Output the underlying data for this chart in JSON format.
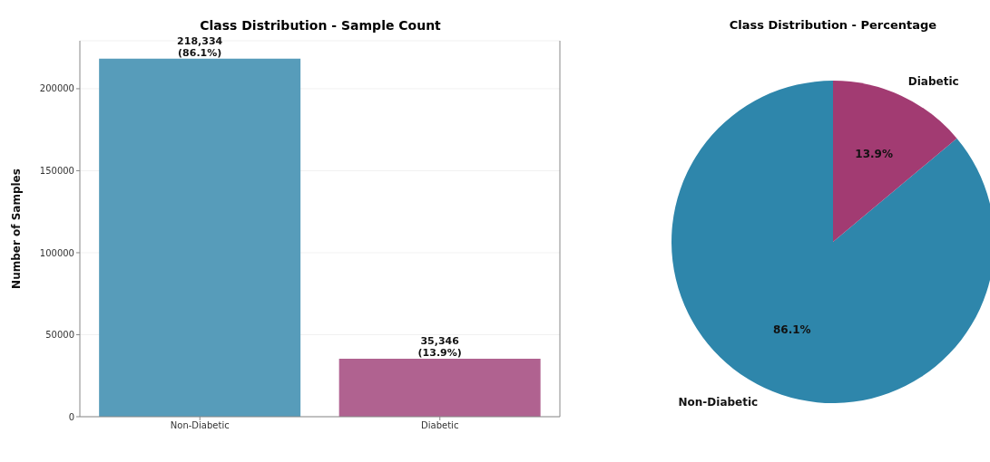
{
  "chart_data": [
    {
      "type": "bar",
      "title": "Class Distribution - Sample Count",
      "ylabel": "Number of Samples",
      "categories": [
        "Non-Diabetic",
        "Diabetic"
      ],
      "values": [
        218334,
        35346
      ],
      "colors": [
        "#579cba",
        "#b06290"
      ],
      "value_labels": [
        "218,334\n(86.1%)",
        "35,346\n(13.9%)"
      ],
      "ylim": [
        0,
        229250
      ],
      "yticks": [
        0,
        50000,
        100000,
        150000,
        200000
      ],
      "grid": "y"
    },
    {
      "type": "pie",
      "title": "Class Distribution - Percentage",
      "categories": [
        "Non-Diabetic",
        "Diabetic"
      ],
      "values": [
        86.1,
        13.9
      ],
      "colors": [
        "#2e86ab",
        "#a23b72"
      ],
      "value_labels": [
        "86.1%",
        "13.9%"
      ]
    }
  ]
}
